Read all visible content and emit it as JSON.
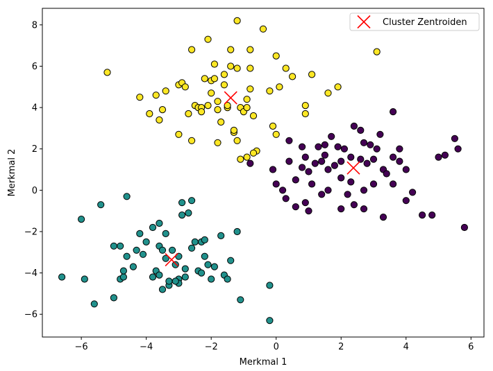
{
  "chart_data": {
    "type": "scatter",
    "title": "",
    "xlabel": "Merkmal 1",
    "ylabel": "Merkmal 2",
    "xlim": [
      -7.2,
      6.4
    ],
    "ylim": [
      -7.1,
      8.8
    ],
    "xticks": [
      -6,
      -4,
      -2,
      0,
      2,
      4,
      6
    ],
    "yticks": [
      -6,
      -4,
      -2,
      0,
      2,
      4,
      6,
      8
    ],
    "xtick_labels": [
      "−6",
      "−4",
      "−2",
      "0",
      "2",
      "4",
      "6"
    ],
    "ytick_labels": [
      "−6",
      "−4",
      "−2",
      "0",
      "2",
      "4",
      "6",
      "8"
    ],
    "grid": false,
    "legend_position": "top-right",
    "legend": [
      {
        "label": "Cluster Zentroiden",
        "marker": "x",
        "color": "#ff0000"
      }
    ],
    "series": [
      {
        "cluster": 0,
        "color": "#440154",
        "points": [
          [
            0.4,
            2.4
          ],
          [
            0.8,
            2.1
          ],
          [
            0.9,
            1.6
          ],
          [
            1.3,
            2.1
          ],
          [
            1.5,
            2.2
          ],
          [
            1.7,
            2.6
          ],
          [
            1.9,
            2.1
          ],
          [
            2.1,
            2.0
          ],
          [
            2.4,
            3.1
          ],
          [
            2.6,
            2.9
          ],
          [
            2.7,
            2.3
          ],
          [
            2.9,
            2.2
          ],
          [
            3.2,
            2.7
          ],
          [
            3.6,
            3.8
          ],
          [
            3.8,
            2.0
          ],
          [
            1.2,
            1.3
          ],
          [
            1.4,
            1.4
          ],
          [
            1.6,
            1.0
          ],
          [
            1.8,
            1.2
          ],
          [
            2.0,
            1.4
          ],
          [
            2.3,
            1.6
          ],
          [
            2.6,
            1.5
          ],
          [
            2.8,
            1.3
          ],
          [
            3.0,
            1.5
          ],
          [
            3.3,
            1.0
          ],
          [
            3.6,
            1.6
          ],
          [
            3.8,
            1.4
          ],
          [
            4.0,
            1.0
          ],
          [
            0.4,
            1.4
          ],
          [
            0.8,
            1.1
          ],
          [
            -0.1,
            1.0
          ],
          [
            -0.8,
            1.3
          ],
          [
            0.0,
            0.3
          ],
          [
            0.2,
            0.0
          ],
          [
            0.6,
            0.5
          ],
          [
            1.0,
            0.9
          ],
          [
            1.6,
            0.0
          ],
          [
            2.0,
            0.6
          ],
          [
            2.3,
            0.4
          ],
          [
            2.7,
            0.0
          ],
          [
            3.0,
            0.3
          ],
          [
            3.6,
            0.3
          ],
          [
            4.2,
            -0.1
          ],
          [
            0.3,
            -0.4
          ],
          [
            0.6,
            -0.8
          ],
          [
            1.0,
            -1.0
          ],
          [
            1.4,
            -0.2
          ],
          [
            2.0,
            -0.9
          ],
          [
            2.4,
            -0.7
          ],
          [
            2.7,
            -0.9
          ],
          [
            3.3,
            -1.3
          ],
          [
            4.0,
            -0.5
          ],
          [
            4.5,
            -1.2
          ],
          [
            4.8,
            -1.2
          ],
          [
            5.0,
            1.6
          ],
          [
            5.2,
            1.7
          ],
          [
            5.5,
            2.5
          ],
          [
            5.6,
            2.0
          ],
          [
            5.8,
            -1.8
          ],
          [
            1.1,
            0.3
          ],
          [
            2.2,
            -0.2
          ],
          [
            3.1,
            2.0
          ],
          [
            3.4,
            0.8
          ],
          [
            1.5,
            1.7
          ],
          [
            0.9,
            -0.6
          ]
        ]
      },
      {
        "cluster": 1,
        "color": "#21918c",
        "points": [
          [
            -6.6,
            -4.2
          ],
          [
            -6.0,
            -1.4
          ],
          [
            -5.9,
            -4.3
          ],
          [
            -5.6,
            -5.5
          ],
          [
            -5.4,
            -0.7
          ],
          [
            -5.0,
            -5.2
          ],
          [
            -5.0,
            -2.7
          ],
          [
            -4.8,
            -2.7
          ],
          [
            -4.8,
            -4.3
          ],
          [
            -4.7,
            -4.2
          ],
          [
            -4.6,
            -3.2
          ],
          [
            -4.6,
            -0.3
          ],
          [
            -4.4,
            -3.7
          ],
          [
            -4.2,
            -2.1
          ],
          [
            -4.1,
            -3.1
          ],
          [
            -4.0,
            -2.5
          ],
          [
            -3.8,
            -1.8
          ],
          [
            -3.8,
            -4.2
          ],
          [
            -3.6,
            -1.6
          ],
          [
            -3.6,
            -2.7
          ],
          [
            -3.4,
            -2.1
          ],
          [
            -3.4,
            -3.3
          ],
          [
            -3.3,
            -4.6
          ],
          [
            -3.2,
            -2.9
          ],
          [
            -3.1,
            -3.6
          ],
          [
            -3.0,
            -4.3
          ],
          [
            -2.9,
            -0.6
          ],
          [
            -2.9,
            -1.2
          ],
          [
            -2.8,
            -3.8
          ],
          [
            -2.7,
            -1.1
          ],
          [
            -2.6,
            -0.5
          ],
          [
            -2.5,
            -2.5
          ],
          [
            -2.4,
            -3.9
          ],
          [
            -2.3,
            -2.5
          ],
          [
            -2.2,
            -2.4
          ],
          [
            -2.2,
            -3.2
          ],
          [
            -2.1,
            -3.6
          ],
          [
            -2.0,
            -4.3
          ],
          [
            -1.9,
            -3.7
          ],
          [
            -1.7,
            -2.2
          ],
          [
            -1.6,
            -4.1
          ],
          [
            -1.5,
            -4.3
          ],
          [
            -1.4,
            -3.4
          ],
          [
            -1.2,
            -2.0
          ],
          [
            -1.1,
            -5.3
          ],
          [
            -0.2,
            -4.6
          ],
          [
            -0.2,
            -6.3
          ],
          [
            -3.5,
            -4.8
          ],
          [
            -3.0,
            -4.5
          ],
          [
            -2.8,
            -4.2
          ],
          [
            -3.7,
            -3.9
          ],
          [
            -3.1,
            -4.4
          ],
          [
            -3.5,
            -2.9
          ],
          [
            -4.7,
            -3.9
          ],
          [
            -4.3,
            -2.9
          ],
          [
            -2.6,
            -2.8
          ],
          [
            -3.3,
            -4.4
          ],
          [
            -3.0,
            -3.2
          ],
          [
            -2.3,
            -4.0
          ],
          [
            -3.6,
            -4.1
          ]
        ]
      },
      {
        "cluster": 2,
        "color": "#fde725",
        "points": [
          [
            -5.2,
            5.7
          ],
          [
            -4.2,
            4.5
          ],
          [
            -3.9,
            3.7
          ],
          [
            -3.7,
            4.6
          ],
          [
            -3.6,
            3.4
          ],
          [
            -3.4,
            4.8
          ],
          [
            -3.0,
            5.1
          ],
          [
            -2.9,
            5.2
          ],
          [
            -2.8,
            5.0
          ],
          [
            -2.7,
            3.7
          ],
          [
            -2.6,
            6.8
          ],
          [
            -2.5,
            4.1
          ],
          [
            -2.4,
            4.0
          ],
          [
            -2.3,
            4.0
          ],
          [
            -2.2,
            5.4
          ],
          [
            -2.1,
            7.3
          ],
          [
            -2.1,
            4.1
          ],
          [
            -2.0,
            5.3
          ],
          [
            -1.9,
            6.1
          ],
          [
            -1.9,
            5.4
          ],
          [
            -1.8,
            4.3
          ],
          [
            -1.8,
            3.9
          ],
          [
            -1.7,
            3.3
          ],
          [
            -1.6,
            5.6
          ],
          [
            -1.5,
            4.0
          ],
          [
            -1.4,
            6.0
          ],
          [
            -1.4,
            6.8
          ],
          [
            -1.2,
            5.9
          ],
          [
            -1.2,
            8.2
          ],
          [
            -1.1,
            4.0
          ],
          [
            -1.0,
            3.8
          ],
          [
            -0.9,
            4.4
          ],
          [
            -0.8,
            5.9
          ],
          [
            -0.8,
            6.8
          ],
          [
            -0.8,
            4.9
          ],
          [
            -0.7,
            3.6
          ],
          [
            -0.4,
            7.8
          ],
          [
            -0.2,
            4.8
          ],
          [
            0.0,
            6.5
          ],
          [
            0.1,
            5.0
          ],
          [
            0.3,
            5.9
          ],
          [
            0.5,
            5.5
          ],
          [
            0.9,
            4.1
          ],
          [
            0.9,
            3.7
          ],
          [
            1.1,
            5.6
          ],
          [
            1.6,
            4.7
          ],
          [
            1.9,
            5.0
          ],
          [
            3.1,
            6.7
          ],
          [
            -3.0,
            2.7
          ],
          [
            -2.6,
            2.4
          ],
          [
            -1.2,
            2.4
          ],
          [
            -1.3,
            2.8
          ],
          [
            -1.1,
            1.5
          ],
          [
            -0.9,
            1.6
          ],
          [
            -0.6,
            1.9
          ],
          [
            -0.1,
            3.1
          ],
          [
            0.0,
            2.7
          ],
          [
            -3.5,
            3.9
          ],
          [
            -1.3,
            2.9
          ],
          [
            -2.3,
            3.8
          ],
          [
            -1.6,
            5.1
          ],
          [
            -2.0,
            4.7
          ],
          [
            -0.9,
            4.0
          ],
          [
            -1.8,
            2.3
          ],
          [
            -0.7,
            1.8
          ],
          [
            -1.5,
            4.1
          ]
        ]
      }
    ],
    "centroids": [
      {
        "x": 2.38,
        "y": 1.08
      },
      {
        "x": -3.22,
        "y": -3.36
      },
      {
        "x": -1.4,
        "y": 4.47
      }
    ]
  }
}
